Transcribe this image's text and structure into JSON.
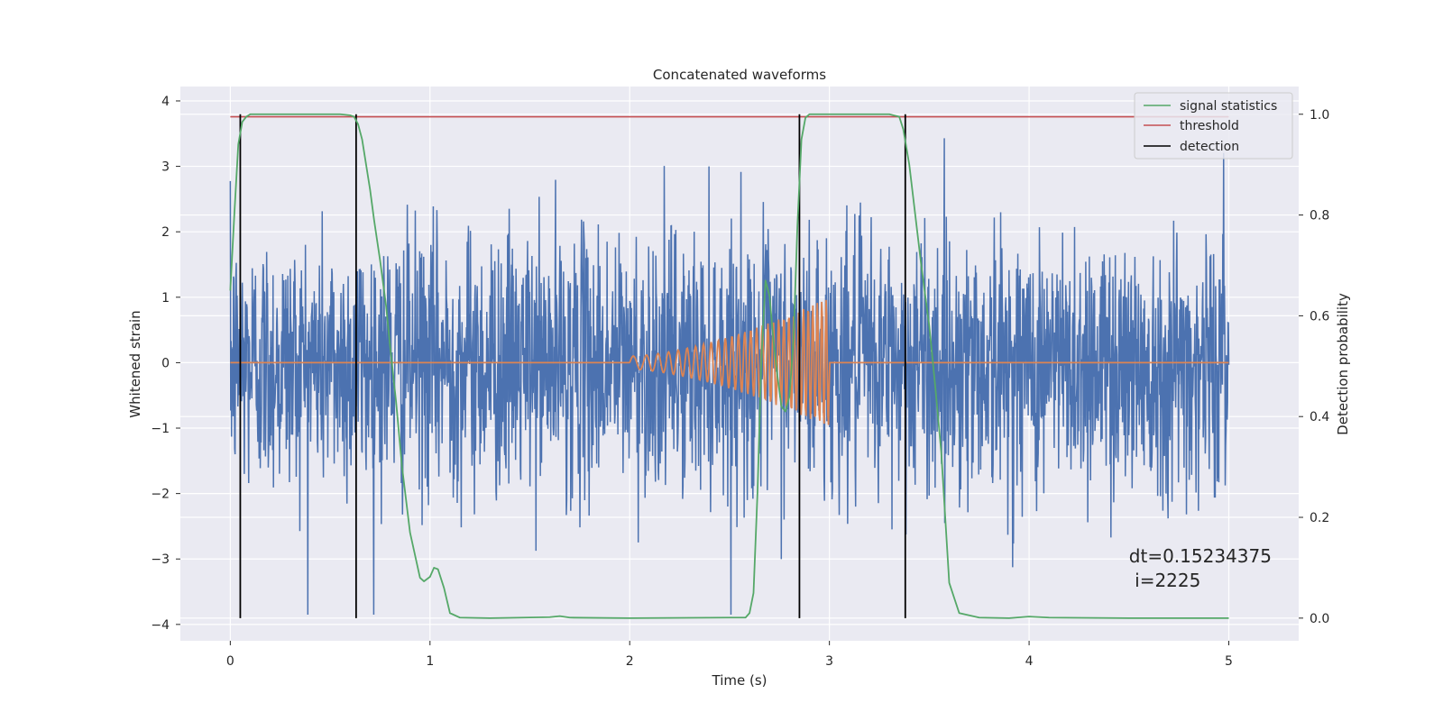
{
  "chart_data": {
    "type": "line",
    "title": "Concatenated waveforms",
    "xlabel": "Time (s)",
    "ylabel": "Whitened strain",
    "ylabel_right": "Detection probability",
    "xlim": [
      -0.25,
      5.35
    ],
    "ylim": [
      -4.25,
      4.22
    ],
    "ylim_right": [
      -0.045,
      1.055
    ],
    "x_ticks": [
      0,
      1,
      2,
      3,
      4,
      5
    ],
    "y_ticks": [
      -4,
      -3,
      -2,
      -1,
      0,
      1,
      2,
      3,
      4
    ],
    "y_ticks_right": [
      0.0,
      0.2,
      0.4,
      0.6,
      0.8,
      1.0
    ],
    "y_tick_labels_right": [
      "0.0",
      "0.2",
      "0.4",
      "0.6",
      "0.8",
      "1.0"
    ],
    "grid": true,
    "legend_position": "top-right",
    "legend": [
      {
        "label": "signal statistics",
        "color": "#55a868"
      },
      {
        "label": "threshold",
        "color": "#c44e52"
      },
      {
        "label": "detection",
        "color": "#000000"
      }
    ],
    "colors": {
      "noise": "#4c72b0",
      "waveform": "#dd8452",
      "signal_statistics": "#55a868",
      "threshold": "#c44e52",
      "detection": "#000000",
      "plot_bg": "#eaeaf2",
      "grid": "#ffffff"
    },
    "noise": {
      "x_range": [
        0,
        5
      ],
      "amplitude": 1.0,
      "min": -3.85,
      "max": 3.82
    },
    "chirp": {
      "start": 2.0,
      "end": 3.0,
      "amp_start": 0.1,
      "amp_end": 1.0,
      "cycles": 30
    },
    "threshold": {
      "x": [
        0,
        5
      ],
      "y": 0.995
    },
    "signal_statistics": {
      "x": [
        0.0,
        0.02,
        0.04,
        0.06,
        0.08,
        0.1,
        0.2,
        0.3,
        0.4,
        0.5,
        0.55,
        0.6,
        0.62,
        0.64,
        0.66,
        0.68,
        0.7,
        0.72,
        0.75,
        0.78,
        0.8,
        0.83,
        0.86,
        0.9,
        0.95,
        0.97,
        1.0,
        1.02,
        1.04,
        1.07,
        1.1,
        1.15,
        1.3,
        1.6,
        1.65,
        1.7,
        2.0,
        2.5,
        2.58,
        2.6,
        2.62,
        2.64,
        2.66,
        2.68,
        2.7,
        2.72,
        2.74,
        2.76,
        2.78,
        2.8,
        2.82,
        2.84,
        2.86,
        2.88,
        2.9,
        3.0,
        3.2,
        3.3,
        3.35,
        3.37,
        3.4,
        3.43,
        3.46,
        3.5,
        3.53,
        3.56,
        3.58,
        3.6,
        3.65,
        3.75,
        3.9,
        4.0,
        4.1,
        4.5,
        5.0
      ],
      "y": [
        0.65,
        0.8,
        0.94,
        0.985,
        0.995,
        1.0,
        1.0,
        1.0,
        1.0,
        1.0,
        1.0,
        0.998,
        0.995,
        0.98,
        0.95,
        0.9,
        0.85,
        0.79,
        0.71,
        0.62,
        0.54,
        0.43,
        0.3,
        0.17,
        0.08,
        0.073,
        0.082,
        0.1,
        0.097,
        0.06,
        0.01,
        0.001,
        0.0,
        0.002,
        0.004,
        0.001,
        0.0,
        0.001,
        0.001,
        0.01,
        0.05,
        0.25,
        0.52,
        0.67,
        0.64,
        0.55,
        0.48,
        0.42,
        0.41,
        0.44,
        0.55,
        0.78,
        0.95,
        0.993,
        1.0,
        1.0,
        1.0,
        1.0,
        0.995,
        0.97,
        0.9,
        0.8,
        0.7,
        0.58,
        0.46,
        0.33,
        0.2,
        0.07,
        0.01,
        0.001,
        0.0,
        0.003,
        0.001,
        0.0,
        0.0
      ]
    },
    "detection_lines": [
      0.05,
      0.63,
      2.85,
      3.38
    ],
    "annotation": {
      "line1": "dt=0.15234375",
      "line2": " i=2225",
      "x": 4.5,
      "y": -3.05
    }
  }
}
